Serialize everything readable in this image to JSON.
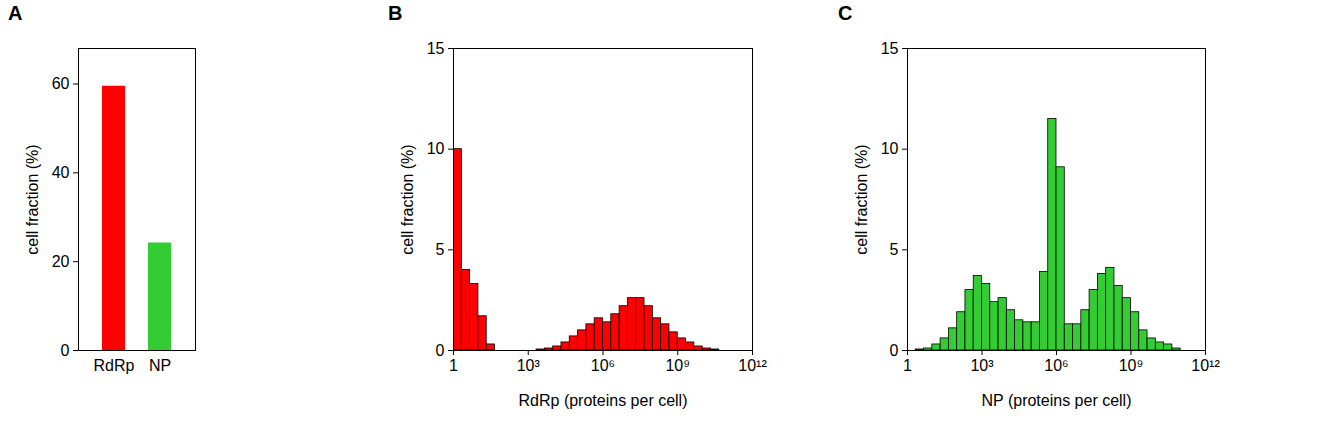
{
  "chart_data": [
    {
      "type": "bar",
      "title": "A",
      "y_label": "cell fraction (%)",
      "categories": [
        "RdRp",
        "NP"
      ],
      "values": [
        59.5,
        24.2
      ],
      "colors": [
        "#ff0000",
        "#33cc33"
      ],
      "ylim": [
        0,
        68
      ],
      "yticks": [
        0,
        20,
        40,
        60
      ],
      "grid": false
    },
    {
      "type": "histogram",
      "title": "B",
      "x_label": "RdRp (proteins per cell)",
      "y_label": "cell fraction (%)",
      "bins": [
        1,
        2.154,
        4.642,
        10,
        21.54,
        46.42,
        100,
        215.4,
        464.2,
        1000,
        2154,
        4642,
        10000,
        21544,
        46416,
        100000,
        215443,
        464159,
        1000000,
        2154435,
        4641589,
        10000000.0,
        21540000.0,
        46420000.0,
        100000000.0,
        215400000.0,
        464200000.0,
        1000000000.0,
        2154000000.0,
        4642000000.0,
        10000000000.0,
        21540000000.0,
        46420000000.0,
        100000000000.0,
        215400000000.0,
        464200000000.0,
        1000000000000.0
      ],
      "counts": [
        10,
        4,
        3.3,
        1.7,
        0.3,
        0,
        0,
        0,
        0,
        0,
        0.05,
        0.1,
        0.2,
        0.4,
        0.7,
        1.0,
        1.3,
        1.6,
        1.4,
        1.8,
        2.2,
        2.6,
        2.6,
        2.2,
        1.6,
        1.3,
        0.9,
        0.6,
        0.4,
        0.2,
        0.1,
        0.05,
        0,
        0,
        0,
        0
      ],
      "color": "#ff0000",
      "log": "x",
      "xlim": [
        1,
        1000000000000.0
      ],
      "xticks": [
        1,
        {
          "value": 1000,
          "label": "10³"
        },
        {
          "value": 1000000,
          "label": "10⁶"
        },
        {
          "value": 1000000000.0,
          "label": "10⁹"
        },
        {
          "value": 1000000000000.0,
          "label": "10¹²"
        }
      ],
      "ylim": [
        0,
        15
      ],
      "yticks": [
        0,
        5,
        10,
        15
      ],
      "grid": false
    },
    {
      "type": "histogram",
      "title": "C",
      "x_label": "NP (proteins per cell)",
      "y_label": "cell fraction (%)",
      "bins": [
        1,
        2.154,
        4.642,
        10,
        21.54,
        46.42,
        100,
        215.4,
        464.2,
        1000,
        2154,
        4642,
        10000,
        21544,
        46416,
        100000,
        215443,
        464159,
        1000000,
        2154435,
        4641589,
        10000000.0,
        21540000.0,
        46420000.0,
        100000000.0,
        215400000.0,
        464200000.0,
        1000000000.0,
        2154000000.0,
        4642000000.0,
        10000000000.0,
        21540000000.0,
        46420000000.0,
        100000000000.0,
        215400000000.0,
        464200000000.0,
        1000000000000.0
      ],
      "counts": [
        0,
        0.05,
        0.1,
        0.3,
        0.6,
        1.1,
        1.9,
        3.0,
        3.7,
        3.3,
        2.4,
        2.6,
        2.0,
        1.5,
        1.4,
        1.4,
        3.9,
        11.5,
        9.1,
        1.3,
        1.3,
        2.0,
        3.0,
        3.8,
        4.1,
        3.2,
        2.6,
        1.9,
        1.0,
        0.6,
        0.4,
        0.3,
        0.1,
        0,
        0,
        0
      ],
      "color": "#33cc33",
      "log": "x",
      "xlim": [
        1,
        1000000000000.0
      ],
      "xticks": [
        1,
        {
          "value": 1000,
          "label": "10³"
        },
        {
          "value": 1000000,
          "label": "10⁶"
        },
        {
          "value": 1000000000.0,
          "label": "10⁹"
        },
        {
          "value": 1000000000000.0,
          "label": "10¹²"
        }
      ],
      "ylim": [
        0,
        15
      ],
      "yticks": [
        0,
        5,
        10,
        15
      ],
      "grid": false
    }
  ]
}
